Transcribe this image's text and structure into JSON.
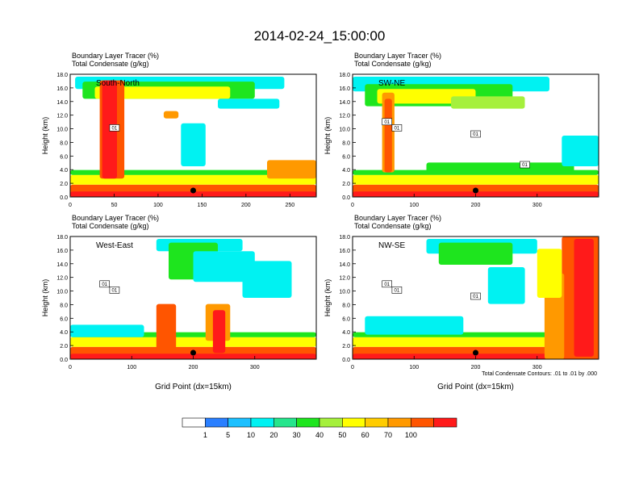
{
  "title": "2014-02-24_15:00:00",
  "panel_header": {
    "line1": "Boundary Layer Tracer    (%)",
    "line2": "Total Condensate    (g/kg)"
  },
  "footnote": "Total Condensate Contours: .01 to .01 by .000",
  "colorbar": {
    "colors": [
      "#ffffff",
      "#2a7fff",
      "#1cc0ff",
      "#00f2f2",
      "#25e58c",
      "#1ee51e",
      "#a5f03c",
      "#ffff00",
      "#ffcc00",
      "#ff9900",
      "#ff5500",
      "#ff1a1a"
    ],
    "labels": [
      "1",
      "5",
      "10",
      "20",
      "30",
      "40",
      "50",
      "60",
      "70",
      "100"
    ]
  },
  "chart_data": [
    {
      "type": "heatmap",
      "panel": "top-left",
      "label": "South-North",
      "ylabel": "Height (km)",
      "xlabel": "",
      "xlim": [
        0,
        280
      ],
      "xticks": [
        "0",
        "50",
        "100",
        "150",
        "200",
        "250"
      ],
      "ylim": [
        0,
        18
      ],
      "yticks": [
        "0.0",
        "2.0",
        "4.0",
        "6.0",
        "8.0",
        "10.0",
        "12.0",
        "14.0",
        "16.0",
        "18.0"
      ],
      "contour_labels": [
        "01"
      ],
      "marker_x": 140
    },
    {
      "type": "heatmap",
      "panel": "top-right",
      "label": "SW-NE",
      "ylabel": "Height (km)",
      "xlabel": "",
      "xlim": [
        0,
        400
      ],
      "xticks": [
        "0",
        "100",
        "200",
        "300"
      ],
      "ylim": [
        0,
        18
      ],
      "yticks": [
        "0.0",
        "2.0",
        "4.0",
        "6.0",
        "8.0",
        "10.0",
        "12.0",
        "14.0",
        "16.0",
        "18.0"
      ],
      "contour_labels": [
        "01",
        "01",
        "01",
        "01"
      ],
      "marker_x": 200
    },
    {
      "type": "heatmap",
      "panel": "bottom-left",
      "label": "West-East",
      "ylabel": "Height (km)",
      "xlabel": "Grid Point (dx=15km)",
      "xlim": [
        0,
        400
      ],
      "xticks": [
        "0",
        "100",
        "200",
        "300"
      ],
      "ylim": [
        0,
        18
      ],
      "yticks": [
        "0.0",
        "2.0",
        "4.0",
        "6.0",
        "8.0",
        "10.0",
        "12.0",
        "14.0",
        "16.0",
        "18.0"
      ],
      "contour_labels": [
        "01",
        "01"
      ],
      "marker_x": 200
    },
    {
      "type": "heatmap",
      "panel": "bottom-right",
      "label": "NW-SE",
      "ylabel": "Height (km)",
      "xlabel": "Grid Point (dx=15km)",
      "xlim": [
        0,
        400
      ],
      "xticks": [
        "0",
        "100",
        "200",
        "300"
      ],
      "ylim": [
        0,
        18
      ],
      "yticks": [
        "0.0",
        "2.0",
        "4.0",
        "6.0",
        "8.0",
        "10.0",
        "12.0",
        "14.0",
        "16.0",
        "18.0"
      ],
      "contour_labels": [
        "01",
        "01",
        "01"
      ],
      "marker_x": 200
    }
  ]
}
